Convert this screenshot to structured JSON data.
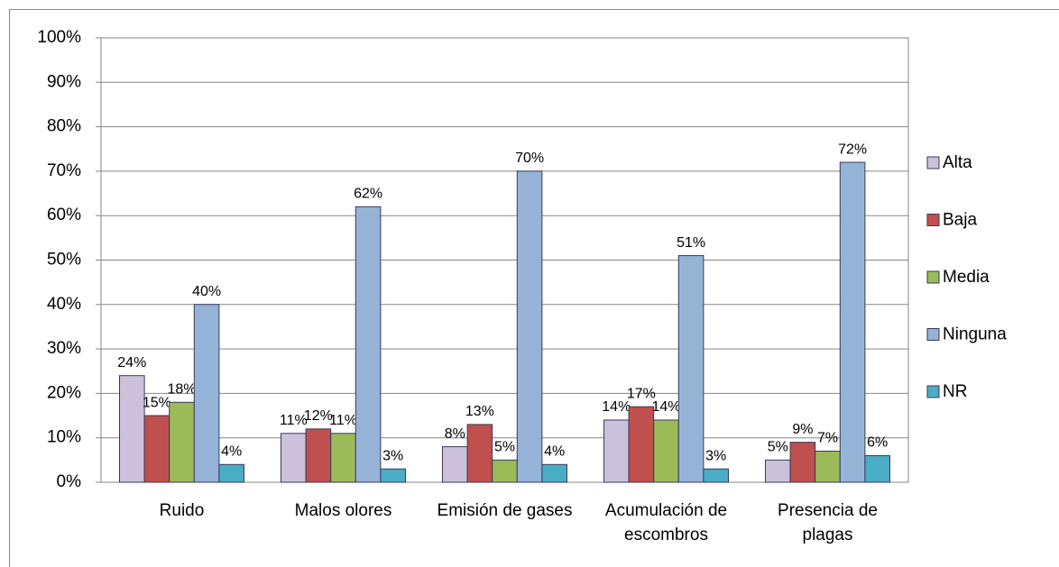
{
  "chart_data": {
    "type": "bar",
    "categories": [
      "Ruido",
      "Malos olores",
      "Emisión de gases",
      "Acumulación de escombros",
      "Presencia de plagas"
    ],
    "series": [
      {
        "name": "Alta",
        "color": "#ccc1da",
        "values": [
          24,
          11,
          8,
          14,
          5
        ],
        "value_labels": [
          "24%",
          "11%",
          "8%",
          "14%",
          "5%"
        ]
      },
      {
        "name": "Baja",
        "color": "#c0504d",
        "values": [
          15,
          12,
          13,
          17,
          9
        ],
        "value_labels": [
          "15%",
          "12%",
          "13%",
          "17%",
          "9%"
        ]
      },
      {
        "name": "Media",
        "color": "#9bbb59",
        "values": [
          18,
          11,
          5,
          14,
          7
        ],
        "value_labels": [
          "18%",
          "11%",
          "5%",
          "14%",
          "7%"
        ]
      },
      {
        "name": "Ninguna",
        "color": "#95b3d7",
        "values": [
          40,
          62,
          70,
          51,
          72
        ],
        "value_labels": [
          "40%",
          "62%",
          "70%",
          "51%",
          "72%"
        ]
      },
      {
        "name": "NR",
        "color": "#4bacc6",
        "values": [
          4,
          3,
          4,
          3,
          6
        ],
        "value_labels": [
          "4%",
          "3%",
          "4%",
          "3%",
          "6%"
        ]
      }
    ],
    "ylim": [
      0,
      100
    ],
    "yticks": [
      {
        "value": 0,
        "label": "0%"
      },
      {
        "value": 10,
        "label": "10%"
      },
      {
        "value": 20,
        "label": "20%"
      },
      {
        "value": 30,
        "label": "30%"
      },
      {
        "value": 40,
        "label": "40%"
      },
      {
        "value": 50,
        "label": "50%"
      },
      {
        "value": 60,
        "label": "60%"
      },
      {
        "value": 70,
        "label": "70%"
      },
      {
        "value": 80,
        "label": "80%"
      },
      {
        "value": 90,
        "label": "90%"
      },
      {
        "value": 100,
        "label": "100%"
      }
    ],
    "grid": true,
    "legend": "right"
  }
}
